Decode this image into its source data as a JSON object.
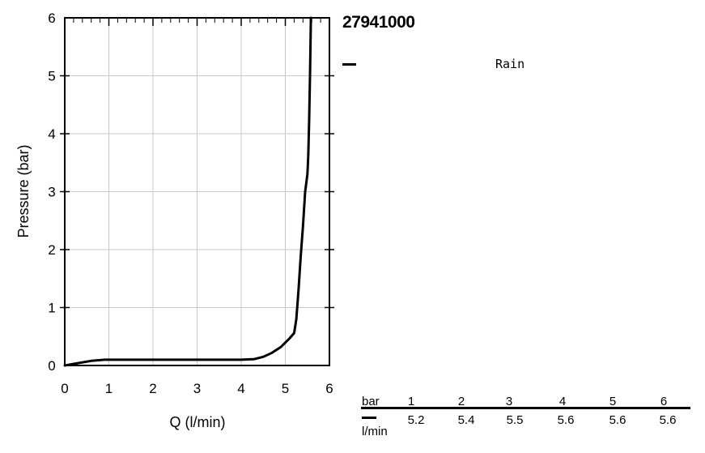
{
  "product_code": "27941000",
  "legend": [
    {
      "name": "Rain",
      "color": "#000000"
    }
  ],
  "chart_data": {
    "type": "line",
    "title": "",
    "xlabel": "Q (l/min)",
    "ylabel": "Pressure (bar)",
    "xlim": [
      0,
      6
    ],
    "ylim": [
      0,
      6
    ],
    "x_ticks": [
      "0",
      "1",
      "2",
      "3",
      "4",
      "5",
      "6"
    ],
    "y_ticks": [
      "0",
      "1",
      "2",
      "3",
      "4",
      "5",
      "6"
    ],
    "grid": true,
    "series": [
      {
        "name": "Rain",
        "color": "#000000",
        "points": [
          [
            0,
            0
          ],
          [
            0.3,
            0.04
          ],
          [
            0.6,
            0.08
          ],
          [
            0.9,
            0.1
          ],
          [
            1.2,
            0.1
          ],
          [
            2,
            0.1
          ],
          [
            3,
            0.1
          ],
          [
            4,
            0.1
          ],
          [
            4.3,
            0.11
          ],
          [
            4.5,
            0.15
          ],
          [
            4.7,
            0.22
          ],
          [
            4.9,
            0.32
          ],
          [
            5.1,
            0.47
          ],
          [
            5.2,
            0.56
          ],
          [
            5.25,
            0.8
          ],
          [
            5.3,
            1.3
          ],
          [
            5.35,
            1.9
          ],
          [
            5.4,
            2.4
          ],
          [
            5.45,
            3.0
          ],
          [
            5.5,
            3.3
          ],
          [
            5.52,
            3.6
          ],
          [
            5.54,
            4.2
          ],
          [
            5.56,
            5.0
          ],
          [
            5.58,
            6.0
          ]
        ]
      }
    ]
  },
  "table": {
    "header_label": "bar",
    "row_unit": "l/min",
    "columns": [
      "1",
      "2",
      "3",
      "4",
      "5",
      "6"
    ],
    "values": [
      "5.2",
      "5.4",
      "5.5",
      "5.6",
      "5.6",
      "5.6"
    ]
  }
}
